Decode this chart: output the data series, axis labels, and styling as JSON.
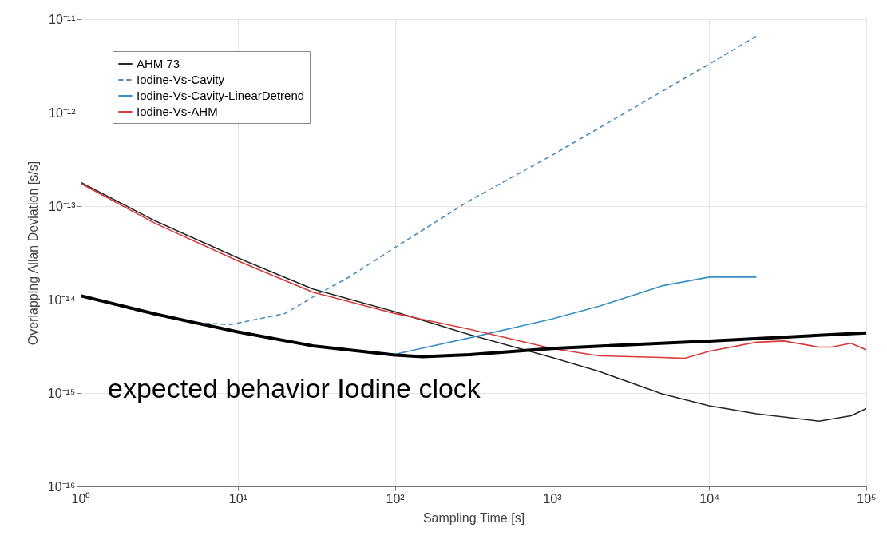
{
  "chart_data": {
    "type": "line",
    "xlabel": "Sampling Time [s]",
    "ylabel": "Overlapping Allan Deviation [s/s]",
    "log": "xy",
    "grid": true,
    "legend": "top left",
    "xlim": [
      1,
      100000
    ],
    "ylim": [
      1e-16,
      1e-11
    ],
    "xticks": [
      {
        "value": 1,
        "label": "10⁰"
      },
      {
        "value": 10,
        "label": "10¹"
      },
      {
        "value": 100,
        "label": "10²"
      },
      {
        "value": 1000,
        "label": "10³"
      },
      {
        "value": 10000,
        "label": "10⁴"
      },
      {
        "value": 100000,
        "label": "10⁵"
      }
    ],
    "yticks": [
      {
        "value": 1e-16,
        "label": "10⁻¹⁶"
      },
      {
        "value": 1e-15,
        "label": "10⁻¹⁵"
      },
      {
        "value": 1e-14,
        "label": "10⁻¹⁴"
      },
      {
        "value": 1e-13,
        "label": "10⁻¹³"
      },
      {
        "value": 1e-12,
        "label": "10⁻¹²"
      },
      {
        "value": 1e-11,
        "label": "10⁻¹¹"
      }
    ],
    "series": [
      {
        "name": "AHM 73",
        "color": "#262626",
        "line_style": "solid",
        "x": [
          1,
          3,
          10,
          30,
          100,
          300,
          1000,
          2000,
          5000,
          10000,
          20000,
          50000,
          80000,
          100000
        ],
        "values": [
          1.8e-13,
          6.9e-14,
          2.8e-14,
          1.3e-14,
          7.4e-15,
          4.2e-15,
          2.4e-15,
          1.7e-15,
          9.8e-16,
          7.3e-16,
          6e-16,
          5e-16,
          5.7e-16,
          6.8e-16
        ]
      },
      {
        "name": "Iodine-Vs-Cavity",
        "color": "#4a8db8",
        "line_style": "dashed",
        "x": [
          1,
          2,
          3,
          5,
          9,
          20,
          34,
          50,
          100,
          300,
          1000,
          10000,
          20000
        ],
        "values": [
          1.1e-14,
          8e-15,
          6.8e-15,
          5.7e-15,
          5.4e-15,
          7.1e-15,
          1.2e-14,
          1.7e-14,
          3.6e-14,
          1.15e-13,
          3.5e-13,
          3.3e-12,
          6.6e-12
        ]
      },
      {
        "name": "Iodine-Vs-Cavity-LinearDetrend",
        "color": "#3a8fc4",
        "line_style": "solid",
        "x": [
          1,
          3,
          10,
          30,
          100,
          300,
          1000,
          2000,
          5000,
          10000,
          20000
        ],
        "values": [
          1.1e-14,
          7.1e-15,
          4.5e-15,
          3.2e-15,
          2.6e-15,
          3.9e-15,
          6.2e-15,
          8.5e-15,
          1.4e-14,
          1.74e-14,
          1.74e-14
        ]
      },
      {
        "name": "Iodine-Vs-AHM",
        "color": "#d93a3a",
        "line_style": "solid",
        "x": [
          1,
          3,
          10,
          30,
          100,
          300,
          1000,
          2000,
          5000,
          7000,
          10000,
          20000,
          30000,
          50000,
          60000,
          80000,
          100000
        ],
        "values": [
          1.75e-13,
          6.5e-14,
          2.6e-14,
          1.2e-14,
          7.1e-15,
          4.8e-15,
          3e-15,
          2.5e-15,
          2.4e-15,
          2.35e-15,
          2.8e-15,
          3.5e-15,
          3.6e-15,
          3.1e-15,
          3.1e-15,
          3.4e-15,
          2.9e-15
        ]
      },
      {
        "color": "#000000",
        "line_style": "solid",
        "x": [
          1,
          3,
          10,
          30,
          100,
          150,
          300,
          1000,
          10000,
          100000
        ],
        "values": [
          1.1e-14,
          7e-15,
          4.5e-15,
          3.2e-15,
          2.55e-15,
          2.45e-15,
          2.57e-15,
          3e-15,
          3.6e-15,
          4.4e-15
        ]
      }
    ],
    "annotations": [
      "expected behavior Iodine clock"
    ]
  }
}
